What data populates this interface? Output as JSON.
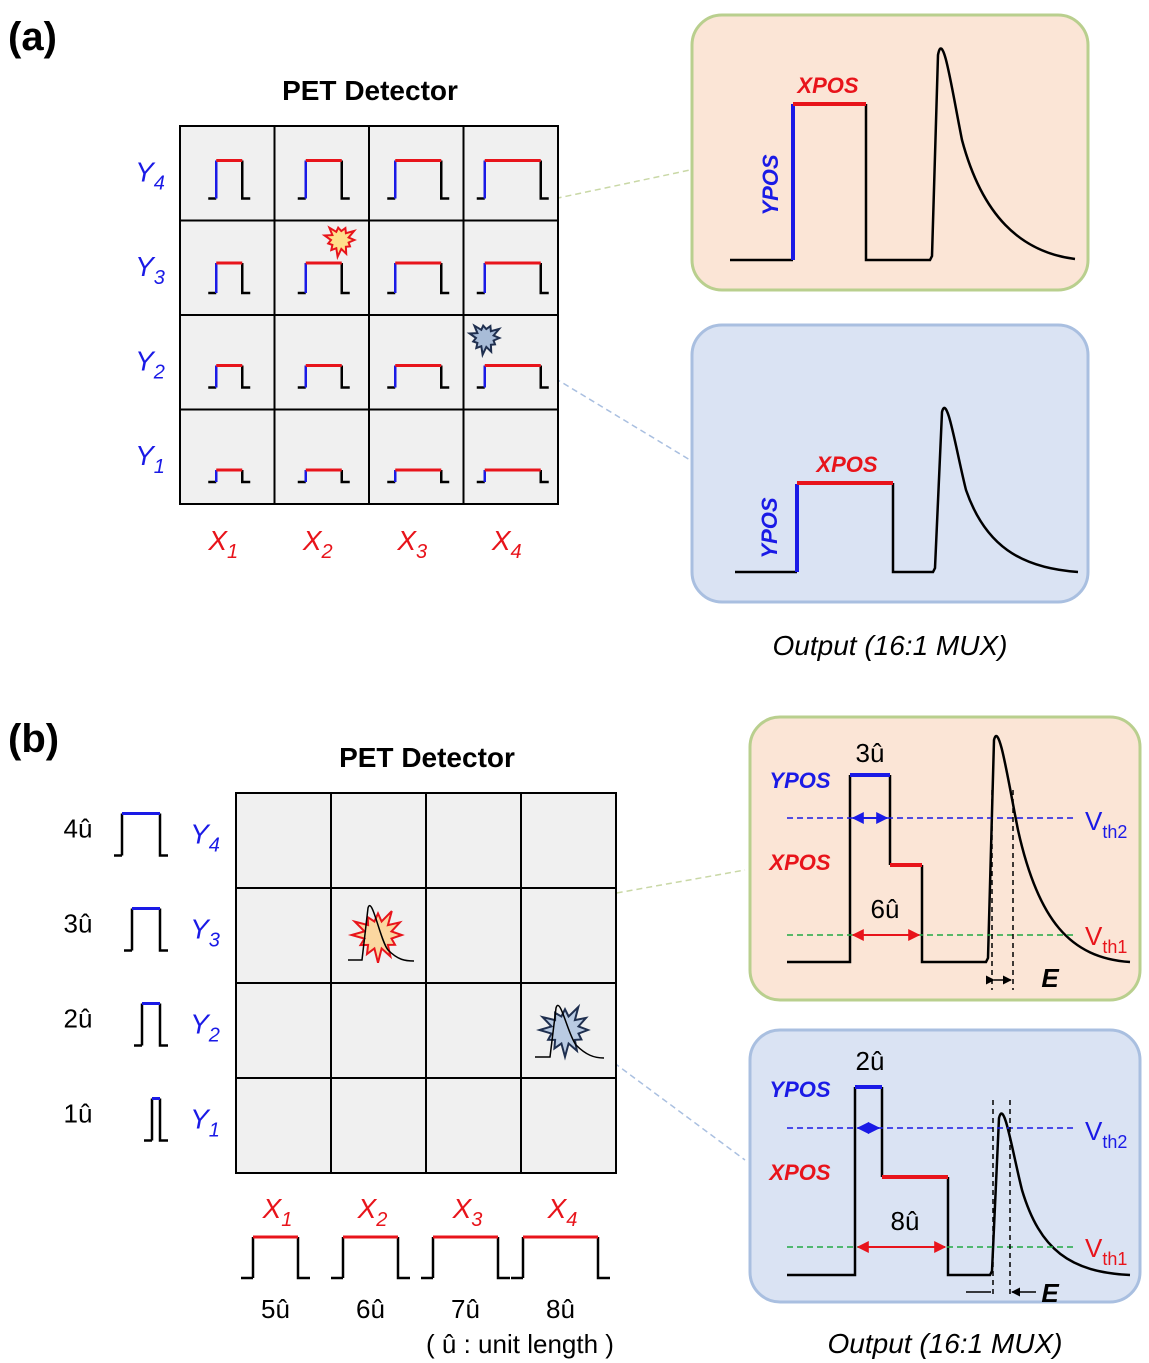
{
  "panel_a": {
    "label": "(a)",
    "title": "PET Detector",
    "y_labels": [
      {
        "main": "Y",
        "sub": "4"
      },
      {
        "main": "Y",
        "sub": "3"
      },
      {
        "main": "Y",
        "sub": "2"
      },
      {
        "main": "Y",
        "sub": "1"
      }
    ],
    "x_labels": [
      {
        "main": "X",
        "sub": "1"
      },
      {
        "main": "X",
        "sub": "2"
      },
      {
        "main": "X",
        "sub": "3"
      },
      {
        "main": "X",
        "sub": "4"
      }
    ],
    "outputs": [
      {
        "xpos": "XPOS",
        "ypos": "YPOS"
      },
      {
        "xpos": "XPOS",
        "ypos": "YPOS"
      }
    ],
    "caption": "Output (16:1 MUX)"
  },
  "panel_b": {
    "label": "(b)",
    "title": "PET Detector",
    "y_widths": [
      "4û",
      "3û",
      "2û",
      "1û"
    ],
    "y_labels": [
      {
        "main": "Y",
        "sub": "4"
      },
      {
        "main": "Y",
        "sub": "3"
      },
      {
        "main": "Y",
        "sub": "2"
      },
      {
        "main": "Y",
        "sub": "1"
      }
    ],
    "x_labels": [
      {
        "main": "X",
        "sub": "1"
      },
      {
        "main": "X",
        "sub": "2"
      },
      {
        "main": "X",
        "sub": "3"
      },
      {
        "main": "X",
        "sub": "4"
      }
    ],
    "x_widths": [
      "5û",
      "6û",
      "7û",
      "8û"
    ],
    "unit_note": "( û : unit length )",
    "outputs": [
      {
        "ypos_width": "3û",
        "ypos": "YPOS",
        "xpos": "XPOS",
        "xpos_width": "6û",
        "vth2": {
          "main": "V",
          "sub": "th2"
        },
        "vth1": {
          "main": "V",
          "sub": "th1"
        },
        "energy": "E"
      },
      {
        "ypos_width": "2û",
        "ypos": "YPOS",
        "xpos": "XPOS",
        "xpos_width": "8û",
        "vth2": {
          "main": "V",
          "sub": "th2"
        },
        "vth1": {
          "main": "V",
          "sub": "th1"
        },
        "energy": "E"
      }
    ],
    "caption": "Output (16:1 MUX)"
  }
}
